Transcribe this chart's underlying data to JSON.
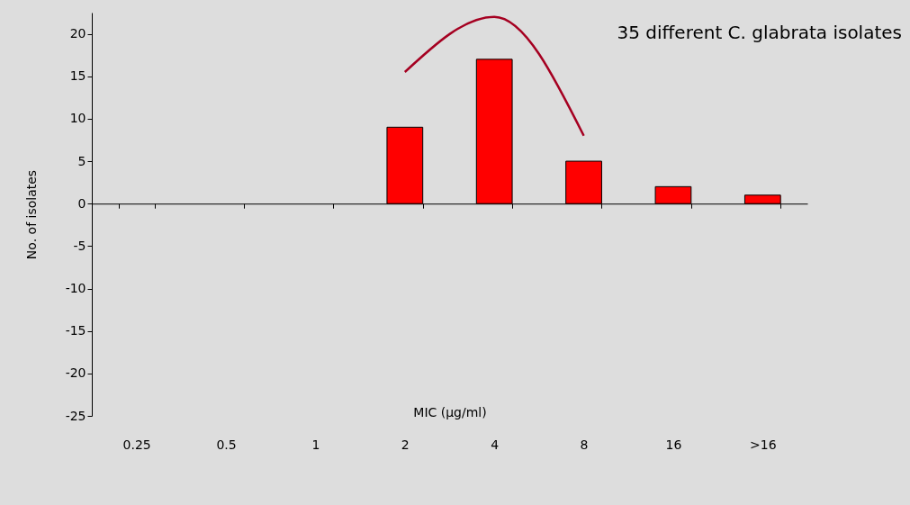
{
  "chart_data": {
    "type": "bar",
    "xlabel": "MIC (μg/ml)",
    "ylabel": "No. of isolates",
    "categories": [
      "0.25",
      "0.5",
      "1",
      "2",
      "4",
      "8",
      "16",
      ">16"
    ],
    "series": [
      {
        "color": "#ff0000",
        "values": [
          null,
          null,
          null,
          9,
          17,
          5,
          2,
          1
        ]
      },
      {
        "type": "line",
        "color": "#a50021",
        "values": [
          null,
          null,
          null,
          15.5,
          22,
          8,
          null,
          null
        ]
      }
    ],
    "ylim": [
      -25,
      22.5
    ],
    "yticks": [
      -25,
      -20,
      -15,
      -10,
      -5,
      0,
      5,
      10,
      15,
      20
    ],
    "annotations": [
      "35 different C. glabrata isolates"
    ]
  }
}
